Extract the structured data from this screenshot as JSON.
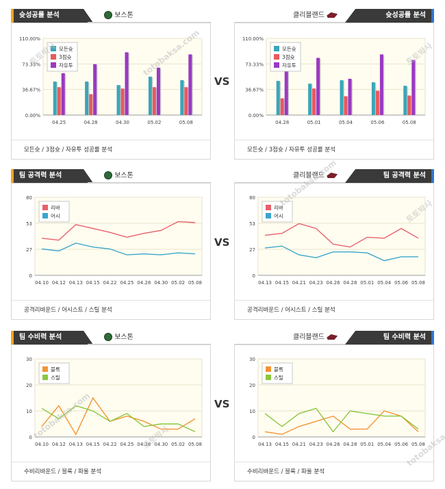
{
  "page": {
    "vs_label": "VS",
    "home_team": "보스톤",
    "away_team": "클리블랜드",
    "watermark_1": "토토박사",
    "watermark_2": "totobaksa.com"
  },
  "sections": [
    {
      "title": "슛성공률 분석",
      "footer": "모든슛 / 3점슛 / 자유투 성공률 분석"
    },
    {
      "title": "팀 공격력 분석",
      "footer": "공격리바운드 / 어시스트 / 스틸 분석"
    },
    {
      "title": "팀 수비력 분석",
      "footer": "수비리바운드 / 블록 / 파울 분석"
    }
  ],
  "colors": {
    "bar1": "#3aa6b9",
    "bar2": "#e85a5e",
    "bar3": "#9a39c2",
    "line_red": "#e8606a",
    "line_teal": "#3aa6cc",
    "line_orange": "#f39433",
    "line_green": "#8cc63f",
    "plot_bg": "#fffdf0",
    "header_dark": "#3a3a3a",
    "accent_orange": "#f6a21e",
    "accent_blue": "#2f76d1"
  },
  "chart_data": [
    {
      "id": "shoot_home",
      "type": "bar",
      "categories": [
        "04.25",
        "04.28",
        "04.30",
        "05.02",
        "05.08"
      ],
      "series": [
        {
          "name": "모든슛",
          "values": [
            48,
            48,
            43,
            55,
            50
          ]
        },
        {
          "name": "3점슛",
          "values": [
            40,
            30,
            38,
            40,
            40
          ]
        },
        {
          "name": "자유투",
          "values": [
            60,
            73,
            90,
            68,
            87
          ]
        }
      ],
      "ylim": [
        0,
        110
      ],
      "yticks": [
        "0.00%",
        "36.67%",
        "73.33%",
        "110.00%"
      ],
      "legend": "top-left"
    },
    {
      "id": "shoot_away",
      "type": "bar",
      "categories": [
        "04.28",
        "05.01",
        "05.04",
        "05.06",
        "05.08"
      ],
      "series": [
        {
          "name": "모든슛",
          "values": [
            49,
            45,
            50,
            47,
            42
          ]
        },
        {
          "name": "3점슛",
          "values": [
            24,
            38,
            27,
            35,
            28
          ]
        },
        {
          "name": "자유투",
          "values": [
            64,
            82,
            52,
            87,
            79
          ]
        }
      ],
      "ylim": [
        0,
        110
      ],
      "yticks": [
        "0.00%",
        "36.67%",
        "73.33%",
        "110.00%"
      ],
      "legend": "top-left"
    },
    {
      "id": "attack_home",
      "type": "line",
      "categories": [
        "04.10",
        "04.12",
        "04.13",
        "04.15",
        "04.22",
        "04.25",
        "04.28",
        "04.30",
        "05.02",
        "05.08"
      ],
      "series": [
        {
          "name": "리바",
          "values": [
            38,
            36,
            52,
            48,
            44,
            39,
            43,
            46,
            55,
            54
          ]
        },
        {
          "name": "어시",
          "values": [
            27,
            25,
            33,
            29,
            27,
            21,
            22,
            21,
            23,
            22
          ]
        }
      ],
      "ylim": [
        0,
        80
      ],
      "yticks": [
        "0",
        "27",
        "53",
        "80"
      ],
      "legend": "top-left"
    },
    {
      "id": "attack_away",
      "type": "line",
      "categories": [
        "04.13",
        "04.15",
        "04.21",
        "04.23",
        "04.26",
        "04.28",
        "05.01",
        "05.04",
        "05.06",
        "05.08"
      ],
      "series": [
        {
          "name": "리바",
          "values": [
            41,
            43,
            53,
            48,
            32,
            29,
            39,
            38,
            48,
            38
          ]
        },
        {
          "name": "어시",
          "values": [
            28,
            30,
            21,
            18,
            24,
            24,
            23,
            15,
            19,
            19
          ]
        }
      ],
      "ylim": [
        0,
        80
      ],
      "yticks": [
        "0",
        "27",
        "53",
        "80"
      ],
      "legend": "top-left"
    },
    {
      "id": "defense_home",
      "type": "line",
      "categories": [
        "04.10",
        "04.12",
        "04.13",
        "04.15",
        "04.22",
        "04.25",
        "04.28",
        "04.30",
        "05.02",
        "05.08"
      ],
      "series": [
        {
          "name": "블록",
          "values": [
            4,
            12,
            1,
            15,
            6,
            8,
            6,
            3,
            3,
            7
          ]
        },
        {
          "name": "스틸",
          "values": [
            11,
            7,
            12,
            10,
            6,
            9,
            4,
            5,
            5,
            2
          ]
        }
      ],
      "ylim": [
        0,
        30
      ],
      "yticks": [
        "0",
        "10",
        "20",
        "30"
      ],
      "legend": "top-left"
    },
    {
      "id": "defense_away",
      "type": "line",
      "categories": [
        "04.13",
        "04.15",
        "04.21",
        "04.23",
        "04.26",
        "04.28",
        "05.01",
        "05.04",
        "05.06",
        "05.08"
      ],
      "series": [
        {
          "name": "블록",
          "values": [
            2,
            1,
            4,
            6,
            8,
            3,
            3,
            10,
            8,
            2
          ]
        },
        {
          "name": "스틸",
          "values": [
            9,
            4,
            9,
            11,
            2,
            10,
            9,
            8,
            8,
            3
          ]
        }
      ],
      "ylim": [
        0,
        30
      ],
      "yticks": [
        "0",
        "10",
        "20",
        "30"
      ],
      "legend": "top-left"
    }
  ]
}
